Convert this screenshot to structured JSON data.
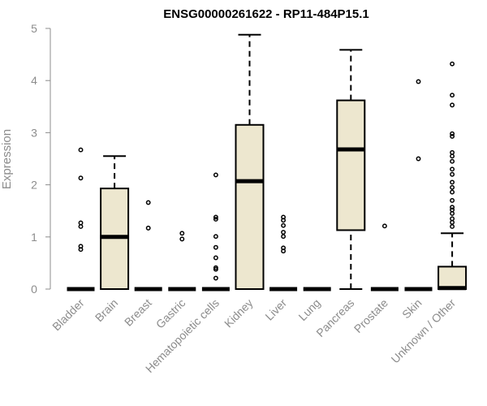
{
  "chart_data": {
    "type": "box",
    "title": "ENSG00000261622 - RP11-484P15.1",
    "ylabel": "Expression",
    "xlabel": "",
    "ylim": [
      0,
      5
    ],
    "yticks": [
      "0",
      "1",
      "2",
      "3",
      "4",
      "5"
    ],
    "colors": {
      "box_fill": "#ede7cf",
      "stroke": "#000000",
      "text": "#8c8c8c"
    },
    "categories": [
      "Bladder",
      "Brain",
      "Breast",
      "Gastric",
      "Hematopoietic cells",
      "Kidney",
      "Liver",
      "Lung",
      "Pancreas",
      "Prostate",
      "Skin",
      "Unknown / Other"
    ],
    "boxes": [
      {
        "q1": 0,
        "median": 0,
        "q3": 0,
        "whisker_low": 0,
        "whisker_high": 0,
        "outliers": [
          0.76,
          0.82,
          1.2,
          1.27,
          2.13,
          2.67
        ]
      },
      {
        "q1": 0,
        "median": 1.0,
        "q3": 1.93,
        "whisker_low": 0,
        "whisker_high": 2.55,
        "outliers": []
      },
      {
        "q1": 0,
        "median": 0,
        "q3": 0,
        "whisker_low": 0,
        "whisker_high": 0,
        "outliers": [
          1.17,
          1.66
        ]
      },
      {
        "q1": 0,
        "median": 0,
        "q3": 0,
        "whisker_low": 0,
        "whisker_high": 0,
        "outliers": [
          0.96,
          1.07
        ]
      },
      {
        "q1": 0,
        "median": 0,
        "q3": 0,
        "whisker_low": 0,
        "whisker_high": 0,
        "outliers": [
          0.21,
          0.38,
          0.41,
          0.6,
          0.8,
          1.01,
          1.34,
          1.38,
          2.19
        ]
      },
      {
        "q1": 0,
        "median": 2.07,
        "q3": 3.15,
        "whisker_low": 0,
        "whisker_high": 4.88,
        "outliers": []
      },
      {
        "q1": 0,
        "median": 0,
        "q3": 0,
        "whisker_low": 0,
        "whisker_high": 0,
        "outliers": [
          0.73,
          0.79,
          1.01,
          1.09,
          1.22,
          1.32,
          1.38
        ]
      },
      {
        "q1": 0,
        "median": 0,
        "q3": 0,
        "whisker_low": 0,
        "whisker_high": 0,
        "outliers": []
      },
      {
        "q1": 1.13,
        "median": 2.68,
        "q3": 3.62,
        "whisker_low": 0,
        "whisker_high": 4.59,
        "outliers": []
      },
      {
        "q1": 0,
        "median": 0,
        "q3": 0,
        "whisker_low": 0,
        "whisker_high": 0,
        "outliers": [
          1.21
        ]
      },
      {
        "q1": 0,
        "median": 0,
        "q3": 0,
        "whisker_low": 0,
        "whisker_high": 0,
        "outliers": [
          2.5,
          3.98
        ]
      },
      {
        "q1": 0,
        "median": 0.02,
        "q3": 0.43,
        "whisker_low": 0,
        "whisker_high": 1.07,
        "outliers": [
          1.2,
          1.28,
          1.35,
          1.45,
          1.52,
          1.57,
          1.7,
          1.86,
          1.95,
          2.05,
          2.2,
          2.3,
          2.45,
          2.55,
          2.62,
          2.93,
          2.98,
          3.53,
          3.72,
          4.32
        ]
      }
    ]
  }
}
